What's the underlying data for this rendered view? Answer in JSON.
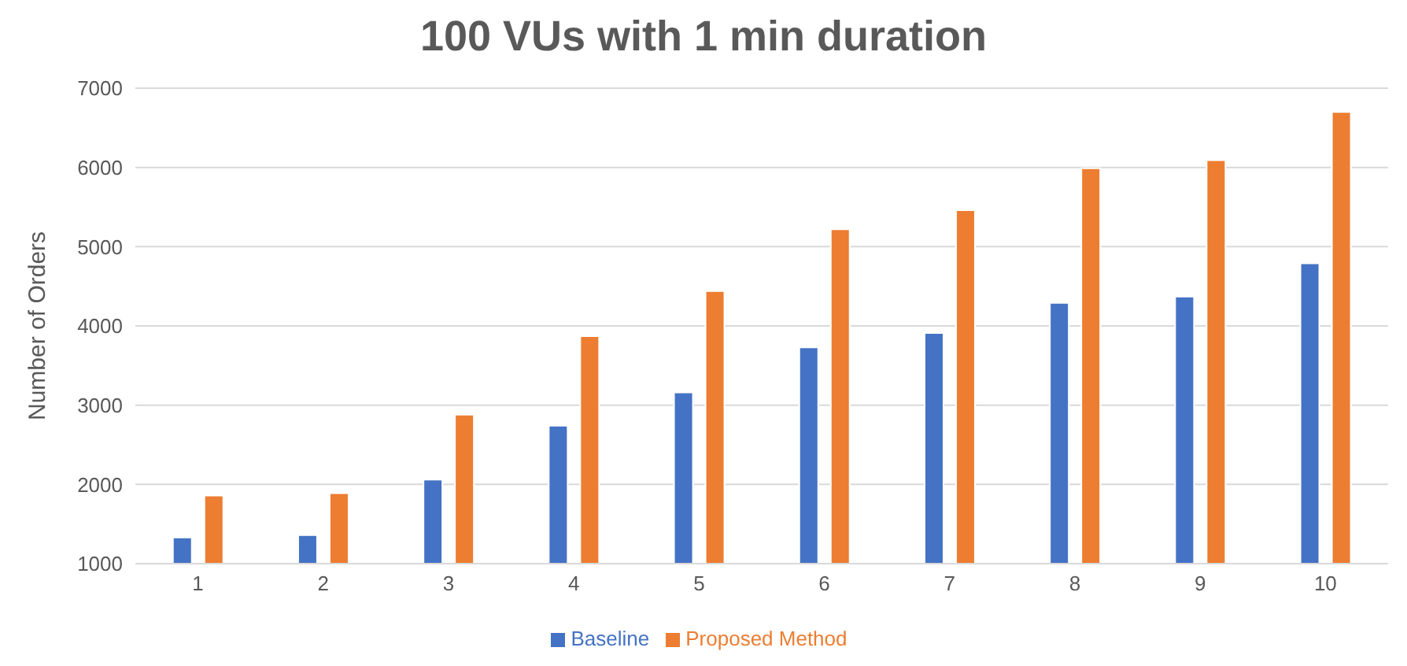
{
  "chart_data": {
    "type": "bar",
    "title": "100 VUs with 1 min duration",
    "ylabel": "Number of Orders",
    "categories": [
      "1",
      "2",
      "3",
      "4",
      "5",
      "6",
      "7",
      "8",
      "9",
      "10"
    ],
    "series": [
      {
        "name": "Baseline",
        "color": "#4472c4",
        "values": [
          1330,
          1360,
          2060,
          2740,
          3160,
          3730,
          3910,
          4290,
          4370,
          4790
        ]
      },
      {
        "name": "Proposed Method",
        "color": "#ed7d31",
        "values": [
          1860,
          1890,
          2880,
          3870,
          4440,
          5220,
          5460,
          5990,
          6090,
          6700
        ]
      }
    ],
    "ylim": [
      1000,
      7000
    ],
    "yticks": [
      1000,
      2000,
      3000,
      4000,
      5000,
      6000,
      7000
    ],
    "grid": "y",
    "legend": "bottom"
  }
}
